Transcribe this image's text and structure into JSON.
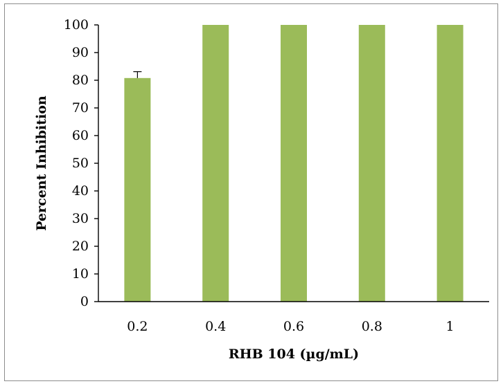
{
  "chart_data": {
    "type": "bar",
    "categories": [
      "0.2",
      "0.4",
      "0.6",
      "0.8",
      "1"
    ],
    "values": [
      80.8,
      100,
      100,
      100,
      100
    ],
    "error_bars": [
      2.3,
      0,
      0,
      0,
      0
    ],
    "title": "",
    "xlabel": "RHB 104 (µg/mL)",
    "ylabel": "Percent Inhibition",
    "ylim": [
      0,
      100
    ],
    "yticks": [
      "0",
      "10",
      "20",
      "30",
      "40",
      "50",
      "60",
      "70",
      "80",
      "90",
      "100"
    ],
    "grid": false,
    "legend": "none",
    "bar_color": "#9bbb59"
  }
}
